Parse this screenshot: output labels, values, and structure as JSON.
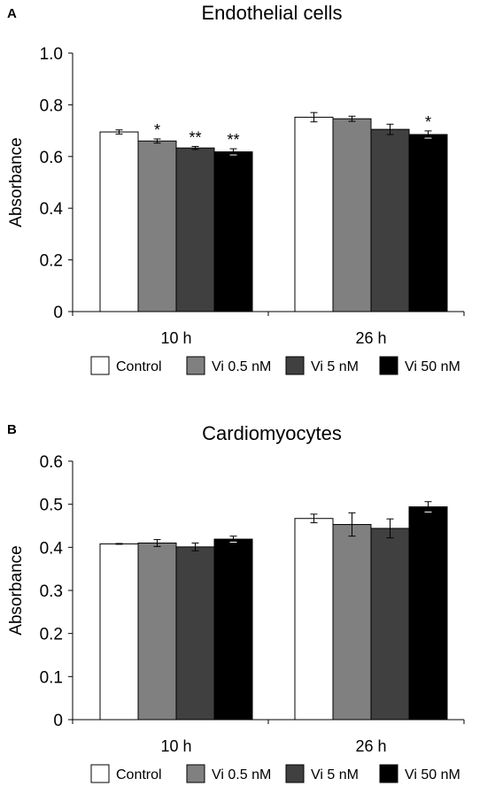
{
  "series_colors": [
    "#ffffff",
    "#808080",
    "#404040",
    "#000000"
  ],
  "chart_data": [
    {
      "panel": "A",
      "type": "bar",
      "title": "Endothelial cells",
      "ylabel": "Absorbance",
      "xlabel": "",
      "ylim": [
        0,
        1.0
      ],
      "yticks": [
        "0",
        "0.2",
        "0.4",
        "0.6",
        "0.8",
        "1.0"
      ],
      "categories": [
        "10 h",
        "26 h"
      ],
      "series": [
        {
          "name": "Control",
          "values": [
            0.695,
            0.752
          ],
          "errors": [
            0.008,
            0.018
          ],
          "sig": [
            "",
            ""
          ]
        },
        {
          "name": "Vi 0.5 nM",
          "values": [
            0.66,
            0.746
          ],
          "errors": [
            0.008,
            0.01
          ],
          "sig": [
            "*",
            ""
          ]
        },
        {
          "name": "Vi 5 nM",
          "values": [
            0.633,
            0.705
          ],
          "errors": [
            0.006,
            0.02
          ],
          "sig": [
            "**",
            ""
          ]
        },
        {
          "name": "Vi 50 nM",
          "values": [
            0.618,
            0.685
          ],
          "errors": [
            0.012,
            0.014
          ],
          "sig": [
            "**",
            "*"
          ]
        }
      ],
      "legend_position": "bottom",
      "grid": false
    },
    {
      "panel": "B",
      "type": "bar",
      "title": "Cardiomyocytes",
      "ylabel": "Absorbance",
      "xlabel": "",
      "ylim": [
        0,
        0.6
      ],
      "yticks": [
        "0",
        "0.1",
        "0.2",
        "0.3",
        "0.4",
        "0.5",
        "0.6"
      ],
      "categories": [
        "10 h",
        "26 h"
      ],
      "series": [
        {
          "name": "Control",
          "values": [
            0.408,
            0.467
          ],
          "errors": [
            0.001,
            0.01
          ],
          "sig": [
            "",
            ""
          ]
        },
        {
          "name": "Vi 0.5 nM",
          "values": [
            0.41,
            0.453
          ],
          "errors": [
            0.008,
            0.027
          ],
          "sig": [
            "",
            ""
          ]
        },
        {
          "name": "Vi 5 nM",
          "values": [
            0.401,
            0.444
          ],
          "errors": [
            0.009,
            0.022
          ],
          "sig": [
            "",
            ""
          ]
        },
        {
          "name": "Vi 50 nM",
          "values": [
            0.419,
            0.494
          ],
          "errors": [
            0.007,
            0.012
          ],
          "sig": [
            "",
            ""
          ]
        }
      ],
      "legend_position": "bottom",
      "grid": false
    }
  ]
}
